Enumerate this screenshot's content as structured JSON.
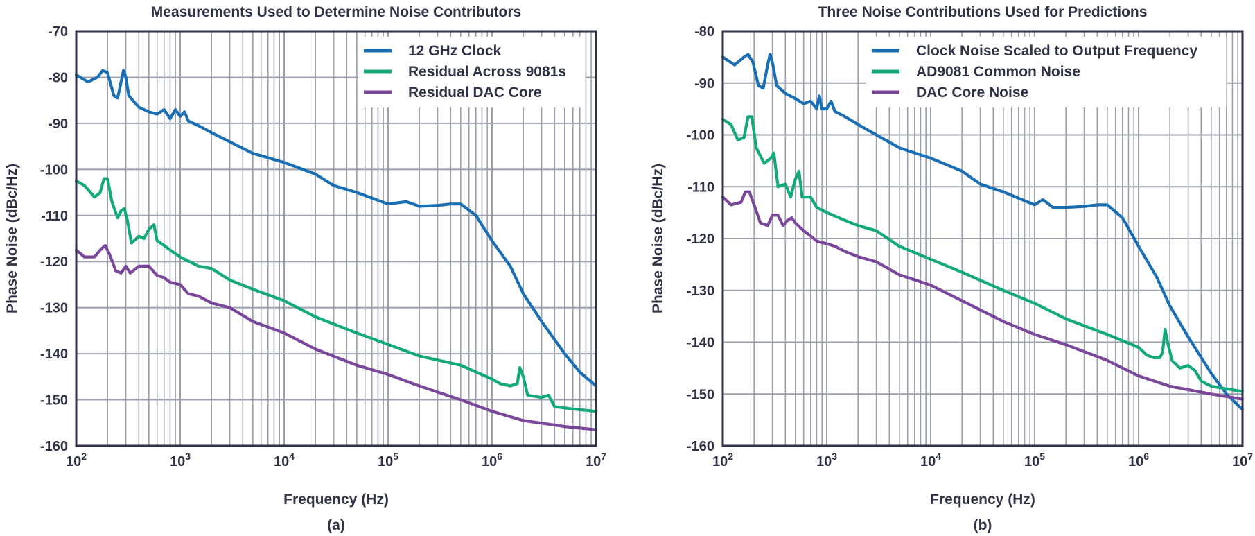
{
  "chart_data": [
    {
      "type": "line",
      "title": "Measurements Used to Determine Noise Contributors",
      "panel_label": "(a)",
      "xlabel": "Frequency (Hz)",
      "ylabel": "Phase Noise (dBc/Hz)",
      "x_scale": "log",
      "xlim": [
        100,
        10000000
      ],
      "ylim": [
        -160,
        -70
      ],
      "y_ticks": [
        "-70",
        "-80",
        "-90",
        "-100",
        "-110",
        "-120",
        "-130",
        "-140",
        "-150",
        "-160"
      ],
      "x_ticks": [
        {
          "base": "10",
          "exp": "2"
        },
        {
          "base": "10",
          "exp": "3"
        },
        {
          "base": "10",
          "exp": "4"
        },
        {
          "base": "10",
          "exp": "5"
        },
        {
          "base": "10",
          "exp": "6"
        },
        {
          "base": "10",
          "exp": "7"
        }
      ],
      "grid": true,
      "legend_position": "top-right",
      "series": [
        {
          "name": "12 GHz Clock",
          "color": "#1a6fb4",
          "points": [
            [
              100,
              -79.5
            ],
            [
              130,
              -81
            ],
            [
              160,
              -80
            ],
            [
              180,
              -78.5
            ],
            [
              200,
              -79
            ],
            [
              230,
              -84
            ],
            [
              250,
              -84.5
            ],
            [
              270,
              -81
            ],
            [
              285,
              -78.5
            ],
            [
              300,
              -80
            ],
            [
              320,
              -84
            ],
            [
              400,
              -86.5
            ],
            [
              500,
              -87.5
            ],
            [
              600,
              -88
            ],
            [
              700,
              -87
            ],
            [
              800,
              -89
            ],
            [
              900,
              -87
            ],
            [
              1000,
              -88.5
            ],
            [
              1100,
              -87.5
            ],
            [
              1200,
              -89.5
            ],
            [
              1500,
              -90.5
            ],
            [
              2000,
              -92
            ],
            [
              3000,
              -94
            ],
            [
              5000,
              -96.5
            ],
            [
              10000,
              -98.5
            ],
            [
              20000,
              -101
            ],
            [
              30000,
              -103.5
            ],
            [
              50000,
              -105
            ],
            [
              100000,
              -107.5
            ],
            [
              150000,
              -107
            ],
            [
              200000,
              -108
            ],
            [
              300000,
              -107.8
            ],
            [
              400000,
              -107.5
            ],
            [
              500000,
              -107.5
            ],
            [
              700000,
              -110
            ],
            [
              1000000,
              -115.5
            ],
            [
              1500000,
              -121
            ],
            [
              2000000,
              -127
            ],
            [
              3000000,
              -133
            ],
            [
              5000000,
              -140
            ],
            [
              7000000,
              -144
            ],
            [
              10000000,
              -147
            ]
          ]
        },
        {
          "name": "Residual Across 9081s",
          "color": "#14a97a",
          "points": [
            [
              100,
              -102.5
            ],
            [
              120,
              -103.5
            ],
            [
              150,
              -106
            ],
            [
              170,
              -105
            ],
            [
              185,
              -102
            ],
            [
              200,
              -102
            ],
            [
              220,
              -107
            ],
            [
              250,
              -110.5
            ],
            [
              270,
              -109
            ],
            [
              290,
              -108.5
            ],
            [
              310,
              -111
            ],
            [
              340,
              -116
            ],
            [
              400,
              -114.5
            ],
            [
              450,
              -115
            ],
            [
              500,
              -113
            ],
            [
              560,
              -112
            ],
            [
              600,
              -115.5
            ],
            [
              700,
              -116.5
            ],
            [
              800,
              -117.5
            ],
            [
              1000,
              -119
            ],
            [
              1500,
              -121
            ],
            [
              2000,
              -121.5
            ],
            [
              3000,
              -124
            ],
            [
              5000,
              -126
            ],
            [
              10000,
              -128.5
            ],
            [
              20000,
              -132
            ],
            [
              50000,
              -135.5
            ],
            [
              100000,
              -138
            ],
            [
              200000,
              -140.5
            ],
            [
              500000,
              -142.5
            ],
            [
              1000000,
              -145.5
            ],
            [
              1200000,
              -146.5
            ],
            [
              1500000,
              -147
            ],
            [
              1750000,
              -146.5
            ],
            [
              1850000,
              -143
            ],
            [
              2000000,
              -145
            ],
            [
              2200000,
              -149
            ],
            [
              3000000,
              -149.5
            ],
            [
              3500000,
              -149
            ],
            [
              4000000,
              -151.5
            ],
            [
              6000000,
              -152
            ],
            [
              10000000,
              -152.5
            ]
          ]
        },
        {
          "name": "Residual DAC Core",
          "color": "#7a479b",
          "points": [
            [
              100,
              -117.5
            ],
            [
              120,
              -119
            ],
            [
              150,
              -119
            ],
            [
              170,
              -117.5
            ],
            [
              190,
              -116.5
            ],
            [
              210,
              -118.5
            ],
            [
              240,
              -122
            ],
            [
              270,
              -122.5
            ],
            [
              300,
              -121
            ],
            [
              330,
              -122.5
            ],
            [
              400,
              -121
            ],
            [
              500,
              -121
            ],
            [
              600,
              -123
            ],
            [
              700,
              -123.5
            ],
            [
              800,
              -124.5
            ],
            [
              1000,
              -125
            ],
            [
              1200,
              -127
            ],
            [
              1500,
              -127.5
            ],
            [
              2000,
              -129
            ],
            [
              3000,
              -130
            ],
            [
              5000,
              -133
            ],
            [
              10000,
              -135.5
            ],
            [
              20000,
              -139
            ],
            [
              50000,
              -142.5
            ],
            [
              100000,
              -144.5
            ],
            [
              200000,
              -147
            ],
            [
              500000,
              -150
            ],
            [
              1000000,
              -152.5
            ],
            [
              2000000,
              -154.5
            ],
            [
              5000000,
              -155.8
            ],
            [
              10000000,
              -156.5
            ]
          ]
        }
      ]
    },
    {
      "type": "line",
      "title": "Three Noise Contributions Used for Predictions",
      "panel_label": "(b)",
      "xlabel": "Frequency (Hz)",
      "ylabel": "Phase Noise (dBc/Hz)",
      "x_scale": "log",
      "xlim": [
        100,
        10000000
      ],
      "ylim": [
        -160,
        -80
      ],
      "y_ticks": [
        "-80",
        "-90",
        "-100",
        "-110",
        "-120",
        "-130",
        "-140",
        "-150",
        "-160"
      ],
      "x_ticks": [
        {
          "base": "10",
          "exp": "2"
        },
        {
          "base": "10",
          "exp": "3"
        },
        {
          "base": "10",
          "exp": "4"
        },
        {
          "base": "10",
          "exp": "5"
        },
        {
          "base": "10",
          "exp": "6"
        },
        {
          "base": "10",
          "exp": "7"
        }
      ],
      "grid": true,
      "legend_position": "top-right",
      "series": [
        {
          "name": "Clock Noise Scaled to Output Frequency",
          "color": "#1a6fb4",
          "points": [
            [
              100,
              -85
            ],
            [
              130,
              -86.5
            ],
            [
              160,
              -85
            ],
            [
              175,
              -84.5
            ],
            [
              195,
              -86
            ],
            [
              220,
              -90.5
            ],
            [
              245,
              -91
            ],
            [
              270,
              -86.5
            ],
            [
              285,
              -84.5
            ],
            [
              300,
              -86
            ],
            [
              330,
              -90.5
            ],
            [
              400,
              -92
            ],
            [
              500,
              -93
            ],
            [
              600,
              -94
            ],
            [
              700,
              -93.5
            ],
            [
              800,
              -95
            ],
            [
              850,
              -92.5
            ],
            [
              900,
              -95
            ],
            [
              1000,
              -95
            ],
            [
              1100,
              -93.5
            ],
            [
              1200,
              -95.5
            ],
            [
              1500,
              -96.5
            ],
            [
              2000,
              -98
            ],
            [
              3000,
              -100
            ],
            [
              5000,
              -102.5
            ],
            [
              10000,
              -104.5
            ],
            [
              20000,
              -107
            ],
            [
              30000,
              -109.5
            ],
            [
              50000,
              -111
            ],
            [
              100000,
              -113.5
            ],
            [
              120000,
              -112.5
            ],
            [
              150000,
              -114
            ],
            [
              200000,
              -114
            ],
            [
              300000,
              -113.8
            ],
            [
              400000,
              -113.5
            ],
            [
              500000,
              -113.5
            ],
            [
              700000,
              -116
            ],
            [
              1000000,
              -121.5
            ],
            [
              1500000,
              -127.5
            ],
            [
              2000000,
              -133
            ],
            [
              3000000,
              -139
            ],
            [
              5000000,
              -146
            ],
            [
              7000000,
              -150
            ],
            [
              10000000,
              -153
            ]
          ]
        },
        {
          "name": "AD9081 Common Noise",
          "color": "#14a97a",
          "points": [
            [
              100,
              -97
            ],
            [
              120,
              -98
            ],
            [
              140,
              -101
            ],
            [
              160,
              -100.5
            ],
            [
              175,
              -96.5
            ],
            [
              190,
              -96.5
            ],
            [
              210,
              -102.5
            ],
            [
              250,
              -105.5
            ],
            [
              290,
              -104.5
            ],
            [
              310,
              -103.5
            ],
            [
              340,
              -110
            ],
            [
              400,
              -109.5
            ],
            [
              450,
              -112
            ],
            [
              500,
              -108.5
            ],
            [
              540,
              -107
            ],
            [
              580,
              -112
            ],
            [
              700,
              -112
            ],
            [
              800,
              -114
            ],
            [
              900,
              -114.5
            ],
            [
              1000,
              -115
            ],
            [
              1500,
              -116.5
            ],
            [
              2000,
              -117.5
            ],
            [
              3000,
              -118.5
            ],
            [
              5000,
              -121.5
            ],
            [
              10000,
              -124
            ],
            [
              20000,
              -126.5
            ],
            [
              50000,
              -130
            ],
            [
              100000,
              -132.5
            ],
            [
              200000,
              -135.5
            ],
            [
              500000,
              -138.5
            ],
            [
              1000000,
              -141
            ],
            [
              1200000,
              -142.5
            ],
            [
              1400000,
              -143
            ],
            [
              1600000,
              -143
            ],
            [
              1700000,
              -142
            ],
            [
              1800000,
              -137.5
            ],
            [
              1900000,
              -140
            ],
            [
              2100000,
              -143.5
            ],
            [
              2500000,
              -145
            ],
            [
              3000000,
              -144.5
            ],
            [
              3500000,
              -145.5
            ],
            [
              4000000,
              -147.5
            ],
            [
              5000000,
              -148.5
            ],
            [
              7000000,
              -149
            ],
            [
              10000000,
              -149.5
            ]
          ]
        },
        {
          "name": "DAC Core Noise",
          "color": "#7a479b",
          "points": [
            [
              100,
              -112
            ],
            [
              120,
              -113.5
            ],
            [
              150,
              -113
            ],
            [
              165,
              -111
            ],
            [
              180,
              -111
            ],
            [
              200,
              -113.5
            ],
            [
              230,
              -117
            ],
            [
              270,
              -117.5
            ],
            [
              300,
              -115.5
            ],
            [
              340,
              -115.5
            ],
            [
              380,
              -117.5
            ],
            [
              420,
              -116.5
            ],
            [
              460,
              -116
            ],
            [
              500,
              -117
            ],
            [
              600,
              -118.5
            ],
            [
              700,
              -119.5
            ],
            [
              800,
              -120.5
            ],
            [
              1000,
              -121
            ],
            [
              1200,
              -121.5
            ],
            [
              1500,
              -122.5
            ],
            [
              2000,
              -123.5
            ],
            [
              3000,
              -124.5
            ],
            [
              5000,
              -127
            ],
            [
              10000,
              -129
            ],
            [
              20000,
              -132
            ],
            [
              50000,
              -136
            ],
            [
              100000,
              -138.5
            ],
            [
              200000,
              -140.5
            ],
            [
              500000,
              -143.5
            ],
            [
              1000000,
              -146.5
            ],
            [
              2000000,
              -148.5
            ],
            [
              5000000,
              -150
            ],
            [
              10000000,
              -151
            ]
          ]
        }
      ]
    }
  ]
}
